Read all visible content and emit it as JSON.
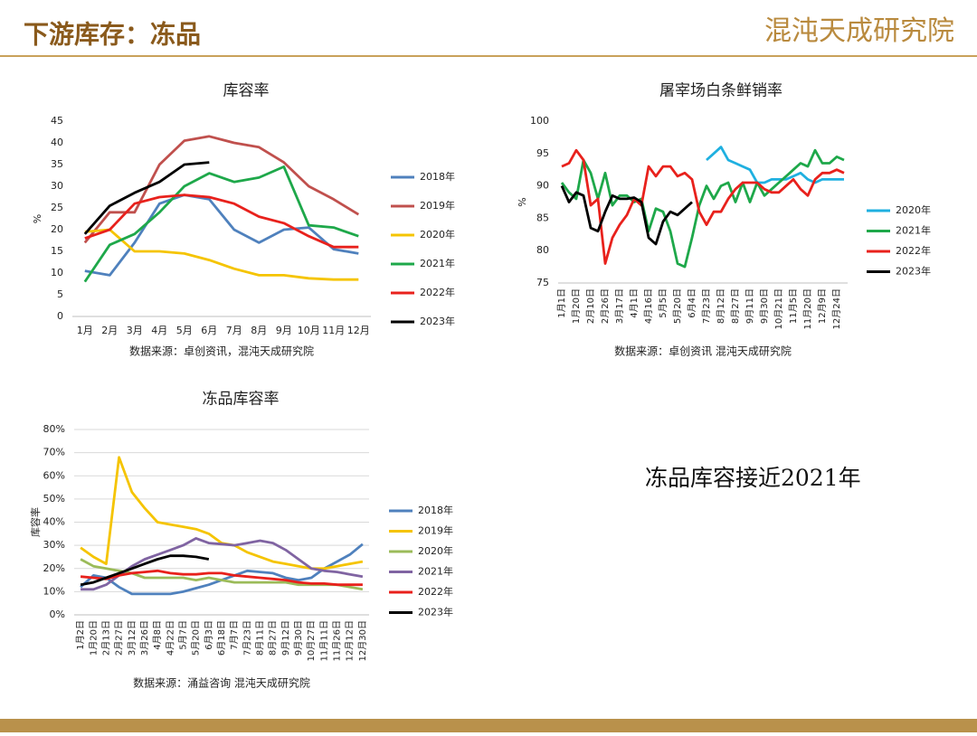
{
  "header": {
    "title": "下游库存：冻品",
    "logo": "混沌天成研究院"
  },
  "note": "冻品库容接近2021年",
  "chart_data": [
    {
      "type": "line",
      "title": "库容率",
      "y_label": "%",
      "source": "数据来源：卓创资讯，混沌天成研究院",
      "categories": [
        "1月",
        "2月",
        "3月",
        "4月",
        "5月",
        "6月",
        "7月",
        "8月",
        "9月",
        "10月",
        "11月",
        "12月"
      ],
      "ylim": [
        0,
        45
      ],
      "yticks": [
        0,
        5,
        10,
        15,
        20,
        25,
        30,
        35,
        40,
        45
      ],
      "grid": false,
      "legend": "right",
      "series": [
        {
          "name": "2018年",
          "color": "#4f81bd",
          "values": [
            10.5,
            9.5,
            17,
            26,
            28,
            27,
            20,
            17,
            20,
            20.5,
            15.5,
            14.5
          ]
        },
        {
          "name": "2019年",
          "color": "#c0504d",
          "values": [
            17,
            24,
            24,
            35,
            40.5,
            41.5,
            40,
            39,
            35.5,
            30,
            27,
            23.5
          ]
        },
        {
          "name": "2020年",
          "color": "#f5c400",
          "values": [
            19.5,
            20,
            15,
            15,
            14.5,
            13,
            11,
            9.5,
            9.5,
            8.8,
            8.5,
            8.5
          ]
        },
        {
          "name": "2021年",
          "color": "#1ea84a",
          "values": [
            8,
            16.5,
            19,
            24,
            30,
            33,
            31,
            32,
            34.5,
            21,
            20.5,
            18.5
          ]
        },
        {
          "name": "2022年",
          "color": "#e8211c",
          "values": [
            18,
            20,
            26,
            27.5,
            28,
            27.5,
            26,
            23,
            21.5,
            18.5,
            16,
            16
          ]
        },
        {
          "name": "2023年",
          "color": "#000000",
          "values": [
            19,
            25.5,
            28.5,
            31,
            35,
            35.5,
            null,
            null,
            null,
            null,
            null,
            null
          ]
        }
      ]
    },
    {
      "type": "line",
      "title": "屠宰场白条鲜销率",
      "y_label": "%",
      "source": "数据来源：卓创资讯 混沌天成研究院",
      "categories": [
        "1月1日",
        null,
        "1月20日",
        null,
        "2月10日",
        null,
        "2月26日",
        null,
        "3月17日",
        null,
        "4月1日",
        null,
        "4月16日",
        null,
        "5月5日",
        null,
        "5月20日",
        null,
        "6月4日",
        null,
        "7月23日",
        null,
        "8月12日",
        null,
        "8月27日",
        null,
        "9月11日",
        null,
        "9月30日",
        null,
        "10月21日",
        null,
        "11月5日",
        null,
        "11月20日",
        null,
        "12月9日",
        null,
        "12月24日",
        null
      ],
      "ylim": [
        75,
        100
      ],
      "yticks": [
        75,
        80,
        85,
        90,
        95,
        100
      ],
      "grid": false,
      "legend": "right",
      "series": [
        {
          "name": "2020年",
          "color": "#1fb0e0",
          "values": [
            null,
            null,
            null,
            null,
            null,
            null,
            null,
            null,
            null,
            null,
            null,
            null,
            null,
            null,
            null,
            null,
            null,
            null,
            null,
            null,
            94,
            95,
            96,
            94,
            93.5,
            93,
            92.5,
            90.5,
            90.5,
            91,
            91,
            91,
            91.5,
            92,
            91,
            90.5,
            91,
            91,
            91,
            91
          ]
        },
        {
          "name": "2021年",
          "color": "#1ea84a",
          "values": [
            90.5,
            89,
            88,
            94,
            92,
            88,
            92,
            87,
            88.5,
            88.5,
            87.5,
            88,
            83,
            86.5,
            86,
            83,
            78,
            77.5,
            82,
            87,
            90,
            88,
            90,
            90.5,
            87.5,
            90.5,
            87.5,
            90.5,
            88.5,
            89.5,
            90.5,
            91.5,
            92.5,
            93.5,
            93,
            95.5,
            93.5,
            93.5,
            94.5,
            94
          ]
        },
        {
          "name": "2022年",
          "color": "#e8211c",
          "values": [
            93,
            93.5,
            95.5,
            94,
            87,
            88,
            78,
            82,
            84,
            85.5,
            88,
            87,
            93,
            91.5,
            93,
            93,
            91.5,
            92,
            91,
            86,
            84,
            86,
            86,
            88,
            89.5,
            90.5,
            90.5,
            90.5,
            89.5,
            89,
            89,
            90,
            91,
            89.5,
            88.5,
            91,
            92,
            92,
            92.5,
            92
          ]
        },
        {
          "name": "2023年",
          "color": "#000000",
          "values": [
            90,
            87.5,
            89,
            88.5,
            83.5,
            83,
            86,
            88.5,
            88,
            88,
            88.2,
            87.5,
            82,
            81,
            84.5,
            86,
            85.5,
            86.5,
            87.5,
            null,
            null,
            null,
            null,
            null,
            null,
            null,
            null,
            null,
            null,
            null,
            null,
            null,
            null,
            null,
            null,
            null,
            null,
            null,
            null,
            null
          ]
        }
      ]
    },
    {
      "type": "line",
      "title": "冻品库容率",
      "y_label": "库容率",
      "source": "数据来源：涌益咨询 混沌天成研究院",
      "categories": [
        "1月2日",
        "1月20日",
        "2月13日",
        "2月27日",
        "3月12日",
        "3月26日",
        "4月8日",
        "4月22日",
        "5月7日",
        "5月20日",
        "6月3日",
        "6月18日",
        "7月7日",
        "7月23日",
        "8月11日",
        "8月27日",
        "9月12日",
        "9月30日",
        "10月27日",
        "11月11日",
        "11月26日",
        "12月12日",
        "12月30日"
      ],
      "ylim": [
        0,
        80
      ],
      "yticks": [
        {
          "value": 0,
          "label": "0%"
        },
        {
          "value": 10,
          "label": "10%"
        },
        {
          "value": 20,
          "label": "20%"
        },
        {
          "value": 30,
          "label": "30%"
        },
        {
          "value": 40,
          "label": "40%"
        },
        {
          "value": 50,
          "label": "50%"
        },
        {
          "value": 60,
          "label": "60%"
        },
        {
          "value": 70,
          "label": "70%"
        },
        {
          "value": 80,
          "label": "80%"
        }
      ],
      "grid": true,
      "legend": "right",
      "series": [
        {
          "name": "2018年",
          "color": "#4f81bd",
          "values": [
            12,
            17,
            16,
            12,
            9,
            9,
            9,
            9,
            10,
            11.5,
            13,
            15,
            17,
            19,
            18.5,
            18,
            16,
            15,
            16,
            20,
            23,
            26,
            30.5
          ]
        },
        {
          "name": "2019年",
          "color": "#f5c400",
          "values": [
            29,
            25,
            22,
            68,
            53,
            46,
            40,
            39,
            38,
            37,
            35,
            31,
            30,
            27,
            25,
            23,
            22,
            21,
            20,
            20,
            21,
            22,
            23
          ]
        },
        {
          "name": "2020年",
          "color": "#9bbb59",
          "values": [
            24,
            21,
            20,
            19,
            18,
            16,
            16,
            16,
            16,
            15,
            16,
            15,
            14,
            14,
            14,
            14,
            14,
            13,
            13,
            13,
            13,
            12,
            11
          ]
        },
        {
          "name": "2021年",
          "color": "#8064a2",
          "values": [
            11,
            11,
            13,
            17,
            21,
            24,
            26,
            28,
            30,
            33,
            31,
            30.5,
            30,
            31,
            32,
            31,
            28,
            24,
            20,
            19,
            18.5,
            17.5,
            16.5
          ]
        },
        {
          "name": "2022年",
          "color": "#e8211c",
          "values": [
            16.5,
            16,
            15.5,
            17,
            18,
            18.5,
            19,
            18,
            17.5,
            17.5,
            18,
            18,
            17,
            16.5,
            16,
            15.5,
            15,
            14,
            13.5,
            13.5,
            13,
            13,
            13
          ]
        },
        {
          "name": "2023年",
          "color": "#000000",
          "values": [
            13,
            14,
            16,
            18,
            20,
            22,
            24,
            25.5,
            25.5,
            25,
            24,
            null,
            null,
            null,
            null,
            null,
            null,
            null,
            null,
            null,
            null,
            null,
            null
          ]
        }
      ]
    }
  ]
}
